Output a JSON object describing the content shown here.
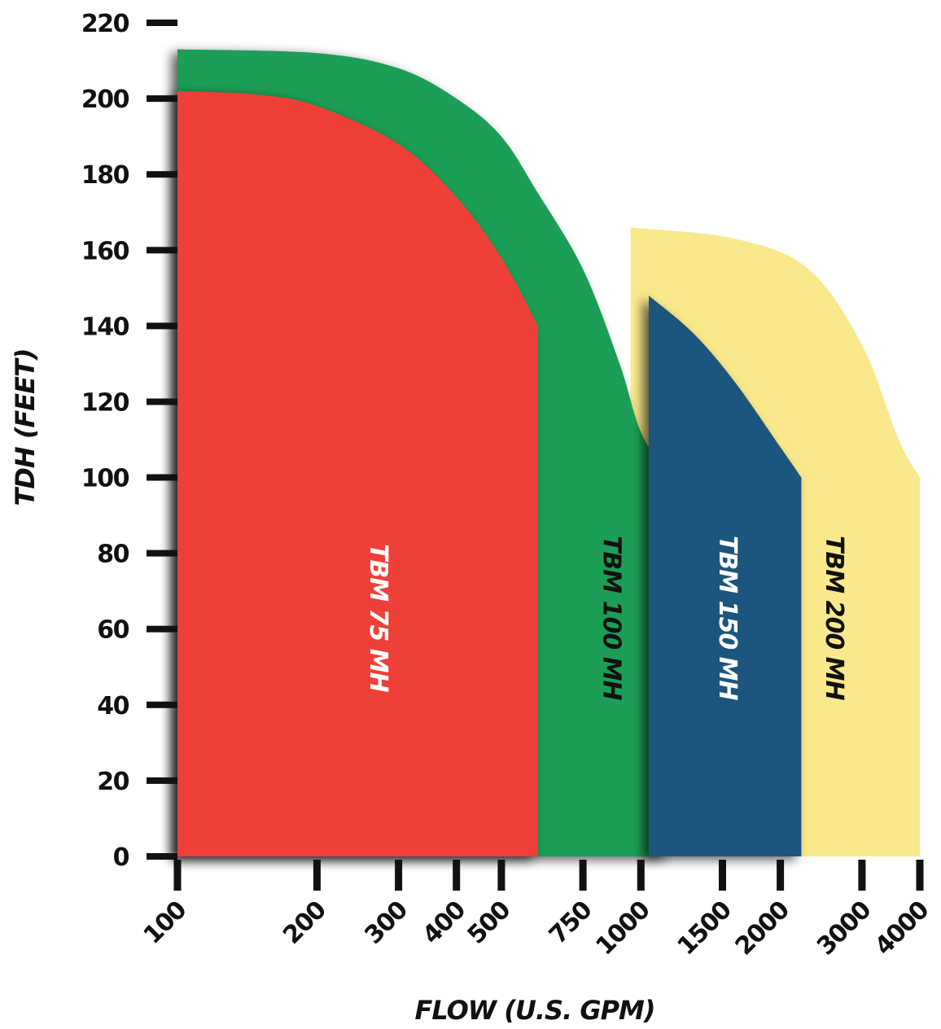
{
  "chart_data": {
    "type": "area",
    "title": "",
    "xlabel": "FLOW (U.S. GPM)",
    "ylabel": "TDH (FEET)",
    "x_scale": "log",
    "xlim": [
      100,
      4000
    ],
    "ylim": [
      0,
      220
    ],
    "x_ticks": [
      100,
      200,
      300,
      400,
      500,
      750,
      1000,
      1500,
      2000,
      3000,
      4000
    ],
    "x_tick_labels": [
      "100",
      "200",
      "300",
      "400",
      "500",
      "750",
      "1000",
      "1500",
      "2000",
      "3000",
      "4000"
    ],
    "y_ticks": [
      0,
      20,
      40,
      60,
      80,
      100,
      120,
      140,
      160,
      180,
      200,
      220
    ],
    "y_tick_labels": [
      "0",
      "20",
      "40",
      "60",
      "80",
      "100",
      "120",
      "140",
      "160",
      "180",
      "200",
      "220"
    ],
    "grid": false,
    "series": [
      {
        "name": "TBM 200 MH",
        "label": "TBM 200 MH",
        "color": "#FAE98C",
        "label_color": "#111111",
        "label_x": 2600,
        "boundary": [
          [
            950,
            166
          ],
          [
            1600,
            163
          ],
          [
            2300,
            155
          ],
          [
            3000,
            135
          ],
          [
            3600,
            110
          ],
          [
            4000,
            100
          ],
          [
            4000,
            0
          ]
        ]
      },
      {
        "name": "TBM 100 MH",
        "label": "TBM 100 MH",
        "color": "#1F9E57",
        "label_color": "#111111",
        "label_x": 860,
        "boundary": [
          [
            100,
            213
          ],
          [
            200,
            212
          ],
          [
            300,
            208
          ],
          [
            400,
            200
          ],
          [
            500,
            190
          ],
          [
            600,
            175
          ],
          [
            750,
            155
          ],
          [
            900,
            130
          ],
          [
            1000,
            112
          ],
          [
            1150,
            100
          ],
          [
            1150,
            0
          ]
        ]
      },
      {
        "name": "TBM 150 MH",
        "label": "TBM 150 MH",
        "color": "#1F547D",
        "label_color": "#FFFFFF",
        "label_x": 1530,
        "boundary": [
          [
            1040,
            148
          ],
          [
            1300,
            138
          ],
          [
            1600,
            125
          ],
          [
            2000,
            108
          ],
          [
            2220,
            100
          ],
          [
            2220,
            0
          ]
        ]
      },
      {
        "name": "TBM 75 MH",
        "label": "TBM 75 MH",
        "color": "#EE3F37",
        "label_color": "#FFFFFF",
        "label_x": 270,
        "boundary": [
          [
            100,
            202
          ],
          [
            150,
            201
          ],
          [
            200,
            198
          ],
          [
            300,
            188
          ],
          [
            400,
            174
          ],
          [
            500,
            158
          ],
          [
            600,
            140
          ],
          [
            600,
            0
          ]
        ]
      }
    ]
  }
}
